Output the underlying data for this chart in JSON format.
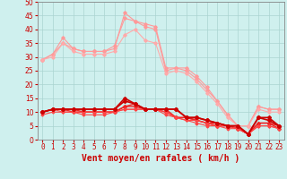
{
  "xlabel": "Vent moyen/en rafales ( km/h )",
  "background_color": "#cff0ee",
  "grid_color": "#aad4d0",
  "x": [
    0,
    1,
    2,
    3,
    4,
    5,
    6,
    7,
    8,
    9,
    10,
    11,
    12,
    13,
    14,
    15,
    16,
    17,
    18,
    19,
    20,
    21,
    22,
    23
  ],
  "ylim": [
    0,
    50
  ],
  "yticks": [
    0,
    5,
    10,
    15,
    20,
    25,
    30,
    35,
    40,
    45,
    50
  ],
  "series": [
    {
      "y": [
        29,
        31,
        37,
        33,
        32,
        32,
        32,
        33,
        46,
        43,
        41,
        40,
        25,
        26,
        26,
        23,
        19,
        14,
        9,
        5,
        5,
        12,
        11,
        11
      ],
      "color": "#ff9999",
      "linewidth": 0.8,
      "marker": "D",
      "markersize": 1.8,
      "zorder": 2
    },
    {
      "y": [
        29,
        31,
        35,
        33,
        32,
        32,
        32,
        34,
        44,
        43,
        42,
        41,
        26,
        26,
        25,
        22,
        18,
        14,
        9,
        5,
        5,
        12,
        11,
        11
      ],
      "color": "#ff9999",
      "linewidth": 0.8,
      "marker": "D",
      "markersize": 1.8,
      "zorder": 2
    },
    {
      "y": [
        29,
        30,
        35,
        32,
        31,
        31,
        31,
        32,
        38,
        40,
        36,
        35,
        24,
        25,
        24,
        21,
        17,
        13,
        8,
        5,
        5,
        11,
        10,
        10
      ],
      "color": "#ffaaaa",
      "linewidth": 0.8,
      "marker": "D",
      "markersize": 1.8,
      "zorder": 2
    },
    {
      "y": [
        10,
        11,
        11,
        11,
        11,
        11,
        11,
        11,
        15,
        13,
        11,
        11,
        11,
        11,
        8,
        8,
        7,
        6,
        5,
        5,
        2,
        8,
        8,
        5
      ],
      "color": "#cc0000",
      "linewidth": 1.2,
      "marker": "D",
      "markersize": 2.0,
      "zorder": 4
    },
    {
      "y": [
        10,
        11,
        11,
        11,
        11,
        11,
        11,
        11,
        14,
        13,
        11,
        11,
        11,
        11,
        8,
        8,
        7,
        6,
        5,
        5,
        2,
        8,
        7,
        5
      ],
      "color": "#cc0000",
      "linewidth": 1.2,
      "marker": "D",
      "markersize": 2.0,
      "zorder": 4
    },
    {
      "y": [
        10,
        11,
        11,
        11,
        10,
        10,
        10,
        10,
        12,
        13,
        11,
        11,
        11,
        8,
        8,
        7,
        6,
        6,
        5,
        4,
        2,
        6,
        6,
        5
      ],
      "color": "#ee2222",
      "linewidth": 1.0,
      "marker": "D",
      "markersize": 1.8,
      "zorder": 3
    },
    {
      "y": [
        10,
        11,
        11,
        10,
        10,
        10,
        10,
        10,
        12,
        12,
        11,
        11,
        10,
        8,
        8,
        7,
        6,
        5,
        5,
        4,
        2,
        6,
        6,
        4
      ],
      "color": "#ee2222",
      "linewidth": 1.0,
      "marker": "D",
      "markersize": 1.8,
      "zorder": 3
    },
    {
      "y": [
        10,
        11,
        10,
        10,
        10,
        10,
        10,
        10,
        11,
        11,
        11,
        11,
        10,
        8,
        7,
        7,
        6,
        5,
        5,
        4,
        2,
        5,
        5,
        4
      ],
      "color": "#ff4444",
      "linewidth": 0.8,
      "marker": "D",
      "markersize": 1.5,
      "zorder": 3
    },
    {
      "y": [
        9,
        10,
        10,
        10,
        9,
        9,
        9,
        10,
        11,
        11,
        11,
        11,
        9,
        8,
        7,
        6,
        5,
        5,
        4,
        4,
        2,
        5,
        5,
        4
      ],
      "color": "#ff4444",
      "linewidth": 0.8,
      "marker": "D",
      "markersize": 1.5,
      "zorder": 3
    }
  ],
  "xtick_labels": [
    "0",
    "1",
    "2",
    "3",
    "4",
    "5",
    "6",
    "7",
    "8",
    "9",
    "10",
    "11",
    "12",
    "13",
    "14",
    "15",
    "16",
    "17",
    "18",
    "19",
    "20",
    "21",
    "22",
    "23"
  ],
  "tick_fontsize": 5.5,
  "label_fontsize": 7,
  "xlabel_color": "#cc0000",
  "tick_color": "#cc0000",
  "axis_color": "#888888"
}
